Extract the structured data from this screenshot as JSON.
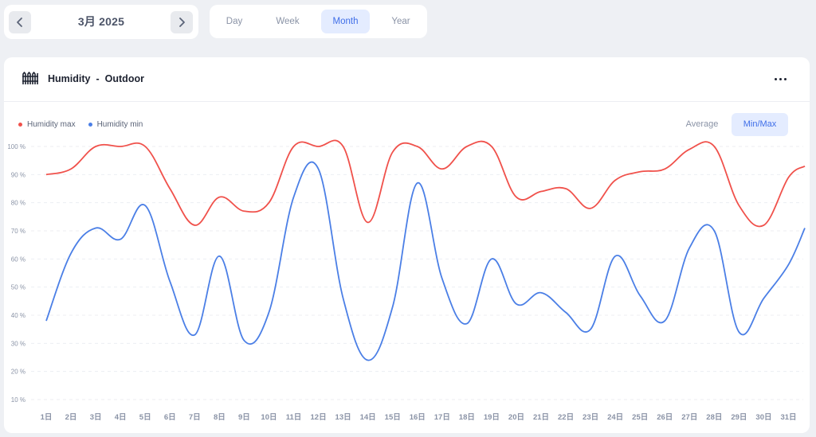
{
  "header": {
    "date_label": "3月 2025",
    "prev_icon": "chevron-left-icon",
    "next_icon": "chevron-right-icon"
  },
  "period_tabs": [
    {
      "label": "Day",
      "active": false
    },
    {
      "label": "Week",
      "active": false
    },
    {
      "label": "Month",
      "active": true
    },
    {
      "label": "Year",
      "active": false
    }
  ],
  "card": {
    "icon": "fence-icon",
    "metric": "Humidity",
    "separator": "-",
    "location": "Outdoor",
    "menu_icon": "more-horizontal-icon"
  },
  "mode_toggle": [
    {
      "label": "Average",
      "active": false
    },
    {
      "label": "Min/Max",
      "active": true
    }
  ],
  "colors": {
    "max": "#f0514b",
    "min": "#4b7fe6",
    "accent": "#3f6ee8",
    "grid": "#eceef2"
  },
  "chart_data": {
    "type": "line",
    "ylim": [
      10,
      100
    ],
    "y_ticks": [
      "10 %",
      "20 %",
      "30 %",
      "40 %",
      "50 %",
      "60 %",
      "70 %",
      "80 %",
      "90 %",
      "100 %"
    ],
    "y_tick_values": [
      10,
      20,
      30,
      40,
      50,
      60,
      70,
      80,
      90,
      100
    ],
    "grid": true,
    "legend": "top-left",
    "categories": [
      "1日",
      "2日",
      "3日",
      "4日",
      "5日",
      "6日",
      "7日",
      "8日",
      "9日",
      "10日",
      "11日",
      "12日",
      "13日",
      "14日",
      "15日",
      "16日",
      "17日",
      "18日",
      "19日",
      "20日",
      "21日",
      "22日",
      "23日",
      "24日",
      "25日",
      "26日",
      "27日",
      "28日",
      "29日",
      "30日",
      "31日"
    ],
    "series": [
      {
        "name": "Humidity max",
        "values": [
          90,
          92,
          100,
          100,
          100,
          85,
          72,
          82,
          77,
          80,
          100,
          100,
          100,
          73,
          98,
          100,
          92,
          100,
          100,
          82,
          84,
          85,
          78,
          88,
          91,
          92,
          99,
          100,
          79,
          72,
          89
        ]
      },
      {
        "name": "Humidity min",
        "values": [
          38,
          62,
          71,
          67,
          79,
          52,
          33,
          61,
          31,
          41,
          82,
          92,
          46,
          24,
          43,
          87,
          53,
          37,
          60,
          44,
          48,
          41,
          35,
          61,
          47,
          38,
          64,
          70,
          34,
          46,
          58
        ]
      }
    ],
    "trailing_values": {
      "Humidity max": 93,
      "Humidity min": 71
    }
  }
}
